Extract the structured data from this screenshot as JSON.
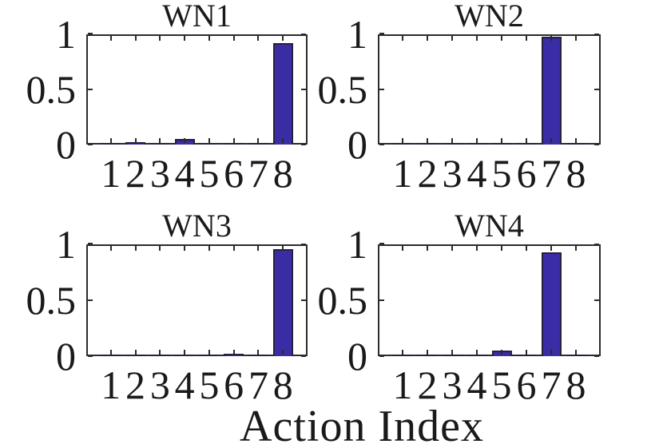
{
  "figure": {
    "xlabel": "Action Index",
    "background": "#ffffff",
    "bar_color": "#3A2CA4",
    "bar_edge_color": "#26203F",
    "axis_color": "#2B2B2B",
    "text_color": "#1A1A1A",
    "ytick_labels": [
      "0",
      "0.5",
      "1"
    ],
    "xtick_labels": [
      "1",
      "2",
      "3",
      "4",
      "5",
      "6",
      "7",
      "8"
    ]
  },
  "chart_data": [
    {
      "type": "bar",
      "title": "WN1",
      "categories": [
        1,
        2,
        3,
        4,
        5,
        6,
        7,
        8
      ],
      "values": [
        0.01,
        0.02,
        0.005,
        0.05,
        0.01,
        0.01,
        0.003,
        0.92
      ],
      "xlabel": "Action Index",
      "ylabel": "",
      "ylim": [
        0,
        1
      ],
      "xlim": [
        0,
        9
      ],
      "yticks": [
        0,
        0.5,
        1
      ],
      "grid": false,
      "legend": null
    },
    {
      "type": "bar",
      "title": "WN2",
      "categories": [
        1,
        2,
        3,
        4,
        5,
        6,
        7,
        8
      ],
      "values": [
        0.003,
        0.003,
        0.003,
        0.003,
        0.004,
        0.003,
        0.98,
        0.004
      ],
      "xlabel": "Action Index",
      "ylabel": "",
      "ylim": [
        0,
        1
      ],
      "xlim": [
        0,
        9
      ],
      "yticks": [
        0,
        0.5,
        1
      ],
      "grid": false,
      "legend": null
    },
    {
      "type": "bar",
      "title": "WN3",
      "categories": [
        1,
        2,
        3,
        4,
        5,
        6,
        7,
        8
      ],
      "values": [
        0.003,
        0.004,
        0.003,
        0.004,
        0.004,
        0.02,
        0.004,
        0.96
      ],
      "xlabel": "Action Index",
      "ylabel": "",
      "ylim": [
        0,
        1
      ],
      "xlim": [
        0,
        9
      ],
      "yticks": [
        0,
        0.5,
        1
      ],
      "grid": false,
      "legend": null
    },
    {
      "type": "bar",
      "title": "WN4",
      "categories": [
        1,
        2,
        3,
        4,
        5,
        6,
        7,
        8
      ],
      "values": [
        0.004,
        0.005,
        0.004,
        0.005,
        0.05,
        0.005,
        0.93,
        0.005
      ],
      "xlabel": "Action Index",
      "ylabel": "",
      "ylim": [
        0,
        1
      ],
      "xlim": [
        0,
        9
      ],
      "yticks": [
        0,
        0.5,
        1
      ],
      "grid": false,
      "legend": null
    }
  ]
}
